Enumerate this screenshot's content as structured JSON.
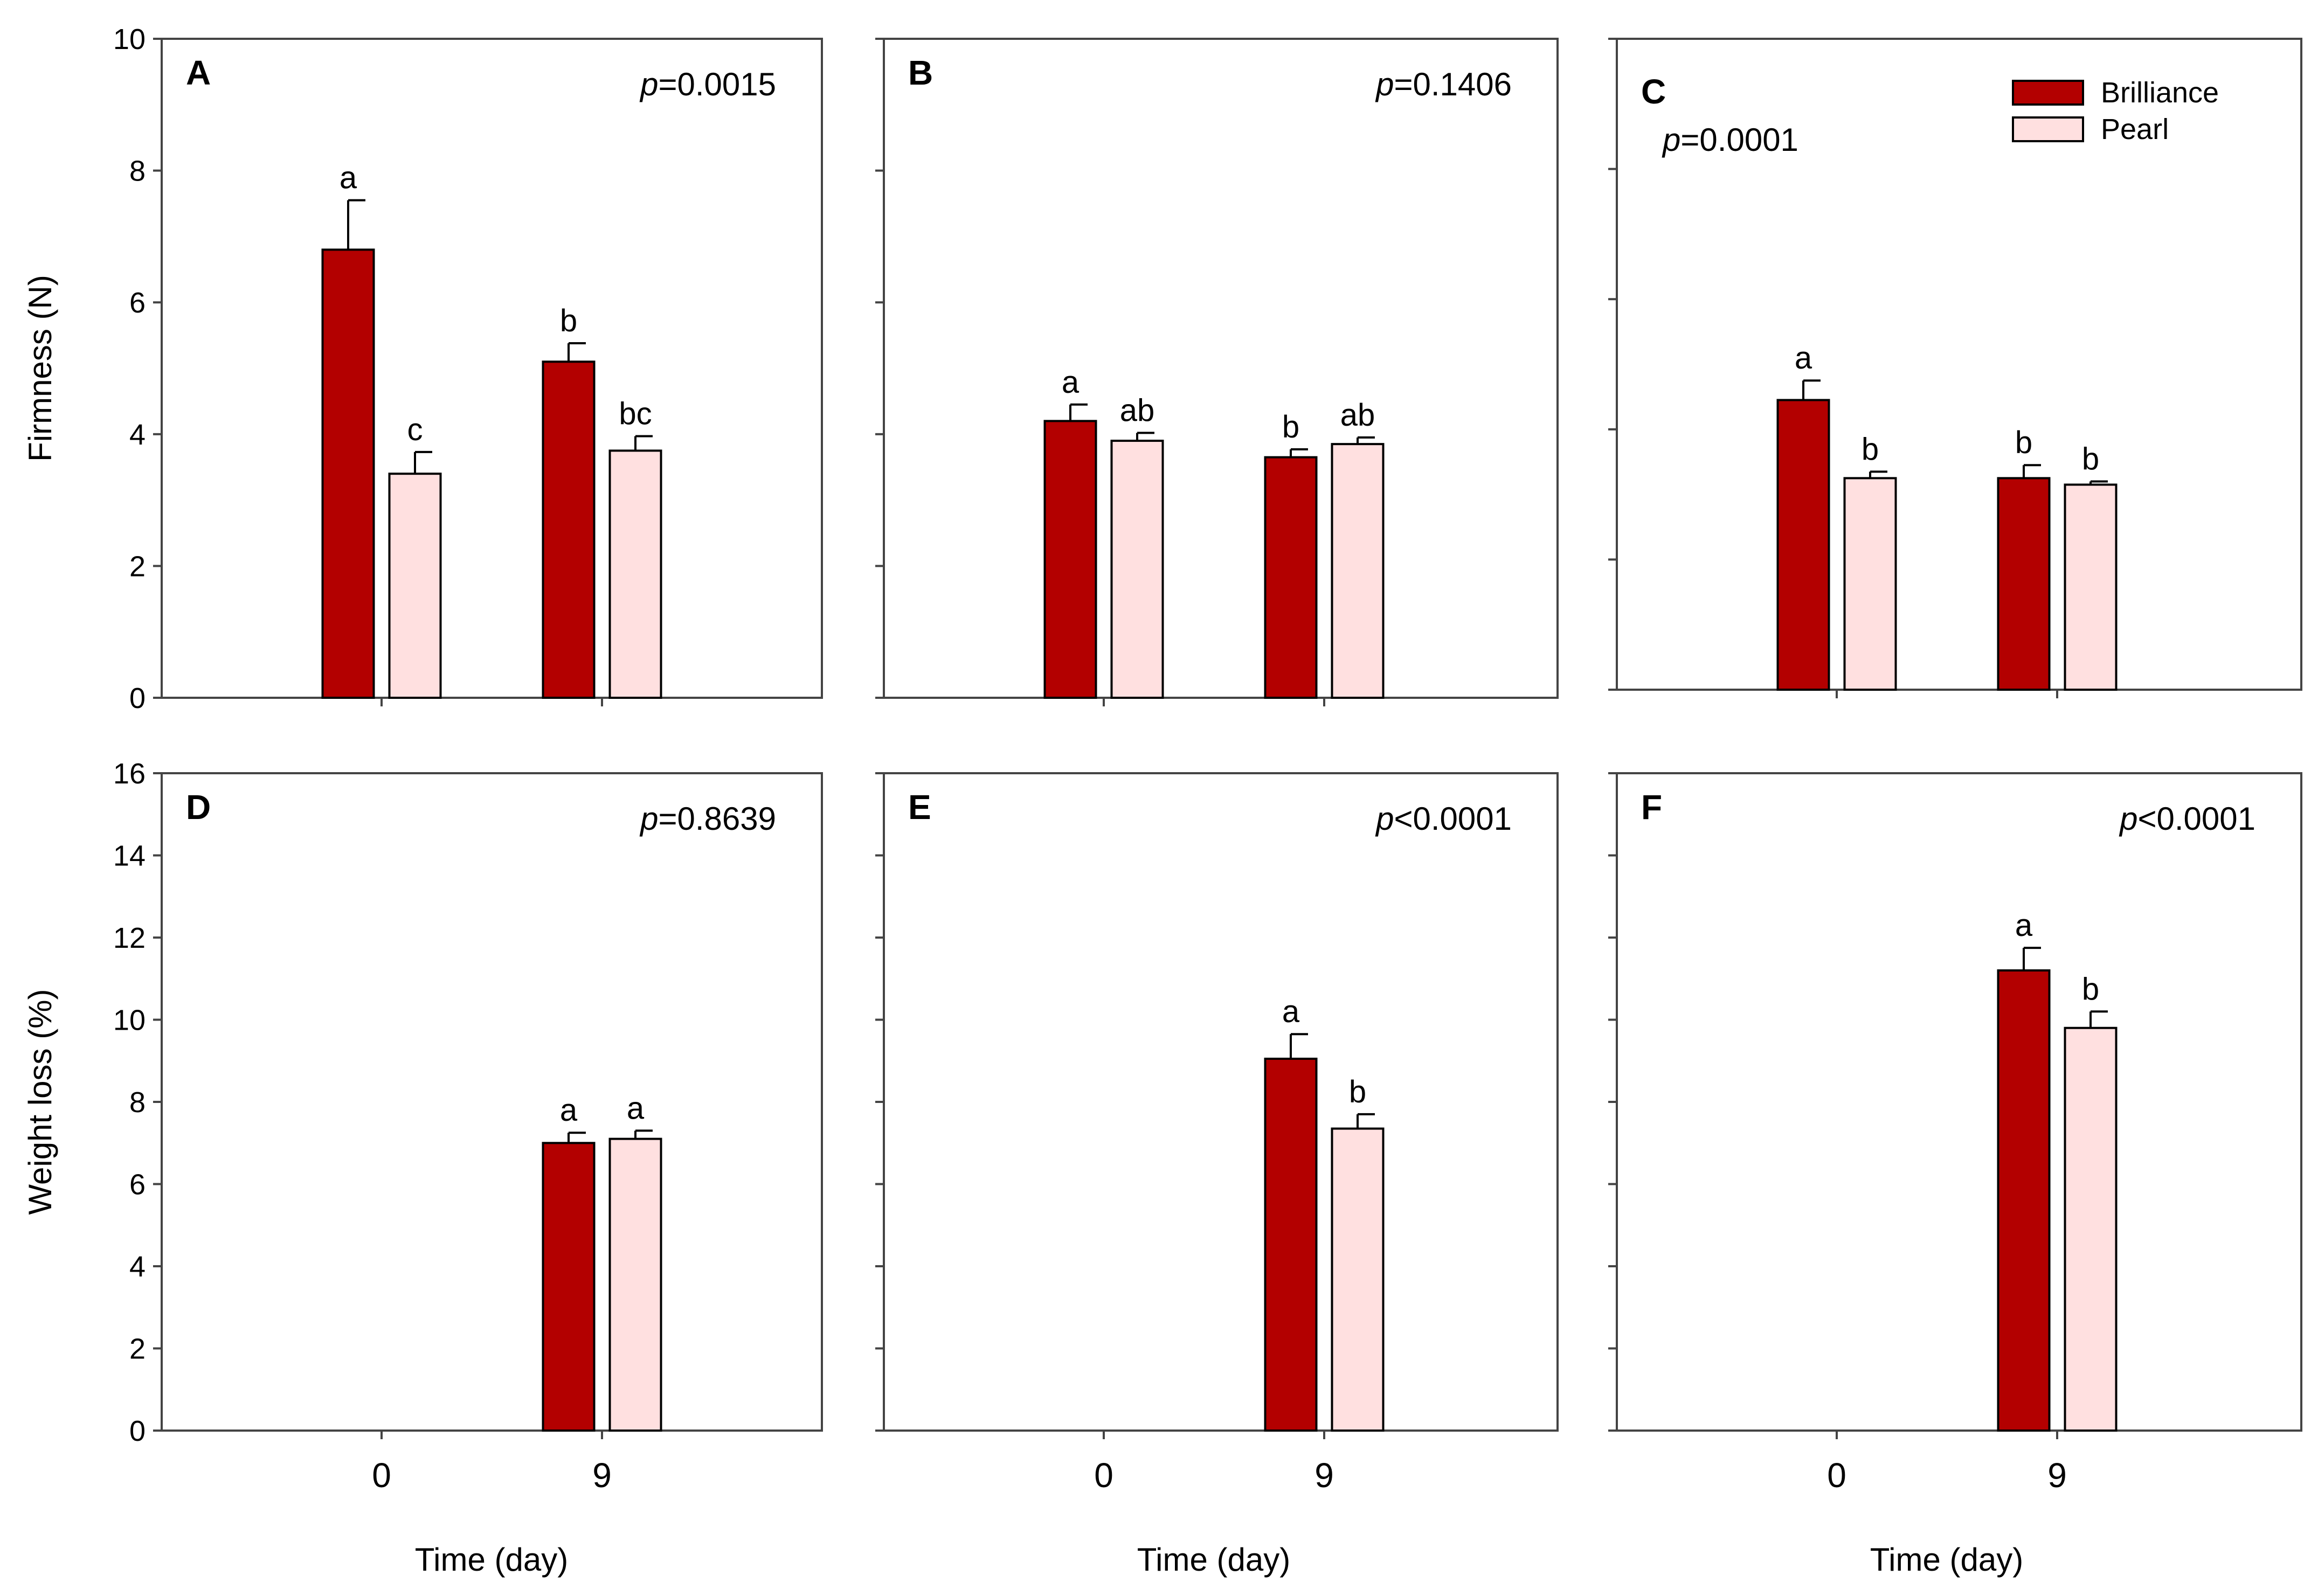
{
  "colors": {
    "brilliance": "#b30000",
    "pearl": "#ffe0e0",
    "axis": "#444444"
  },
  "legend": {
    "items": [
      {
        "label": "Brilliance",
        "color": "#b30000"
      },
      {
        "label": "Pearl",
        "color": "#ffe0e0"
      }
    ]
  },
  "axis_titles": {
    "firmness": "Firmness (N)",
    "weight_loss": "Weight loss (%)",
    "time": "Time (day)"
  },
  "chart_data": [
    {
      "type": "bar",
      "panel": "A",
      "p_prefix": "p",
      "p_value": "=0.0015",
      "xlabel": "",
      "ylabel": "Firmness (N)",
      "ylim": [
        0,
        10
      ],
      "yticks": [
        0,
        2,
        4,
        6,
        8,
        10
      ],
      "categories": [
        "0",
        "9"
      ],
      "series": [
        {
          "name": "Brilliance",
          "values": [
            6.8,
            5.1
          ],
          "errors": [
            0.75,
            0.28
          ],
          "letters": [
            "a",
            "b"
          ]
        },
        {
          "name": "Pearl",
          "values": [
            3.4,
            3.75
          ],
          "errors": [
            0.33,
            0.22
          ],
          "letters": [
            "c",
            "bc"
          ]
        }
      ]
    },
    {
      "type": "bar",
      "panel": "B",
      "p_prefix": "p",
      "p_value": "=0.1406",
      "xlabel": "",
      "ylabel": "",
      "ylim": [
        0,
        10
      ],
      "categories": [
        "0",
        "9"
      ],
      "series": [
        {
          "name": "Brilliance",
          "values": [
            4.2,
            3.65
          ],
          "errors": [
            0.25,
            0.12
          ],
          "letters": [
            "a",
            "b"
          ]
        },
        {
          "name": "Pearl",
          "values": [
            3.9,
            3.85
          ],
          "errors": [
            0.12,
            0.1
          ],
          "letters": [
            "ab",
            "ab"
          ]
        }
      ]
    },
    {
      "type": "bar",
      "panel": "C",
      "p_prefix": "p",
      "p_value": "=0.0001",
      "xlabel": "",
      "ylabel": "",
      "ylim": [
        0,
        10
      ],
      "categories": [
        "0",
        "9"
      ],
      "series": [
        {
          "name": "Brilliance",
          "values": [
            4.45,
            3.25
          ],
          "errors": [
            0.3,
            0.2
          ],
          "letters": [
            "a",
            "b"
          ]
        },
        {
          "name": "Pearl",
          "values": [
            3.25,
            3.15
          ],
          "errors": [
            0.1,
            0.05
          ],
          "letters": [
            "b",
            "b"
          ]
        }
      ]
    },
    {
      "type": "bar",
      "panel": "D",
      "p_prefix": "p",
      "p_value": "=0.8639",
      "xlabel": "Time (day)",
      "ylabel": "Weight loss (%)",
      "ylim": [
        0,
        16
      ],
      "yticks": [
        0,
        2,
        4,
        6,
        8,
        10,
        12,
        14,
        16
      ],
      "categories": [
        "0",
        "9"
      ],
      "series": [
        {
          "name": "Brilliance",
          "values": [
            null,
            7.0
          ],
          "errors": [
            null,
            0.25
          ],
          "letters": [
            null,
            "a"
          ]
        },
        {
          "name": "Pearl",
          "values": [
            null,
            7.1
          ],
          "errors": [
            null,
            0.2
          ],
          "letters": [
            null,
            "a"
          ]
        }
      ]
    },
    {
      "type": "bar",
      "panel": "E",
      "p_prefix": "p",
      "p_value": "<0.0001",
      "xlabel": "Time (day)",
      "ylabel": "",
      "ylim": [
        0,
        16
      ],
      "categories": [
        "0",
        "9"
      ],
      "series": [
        {
          "name": "Brilliance",
          "values": [
            null,
            9.05
          ],
          "errors": [
            null,
            0.6
          ],
          "letters": [
            null,
            "a"
          ]
        },
        {
          "name": "Pearl",
          "values": [
            null,
            7.35
          ],
          "errors": [
            null,
            0.35
          ],
          "letters": [
            null,
            "b"
          ]
        }
      ]
    },
    {
      "type": "bar",
      "panel": "F",
      "p_prefix": "p",
      "p_value": "<0.0001",
      "xlabel": "Time (day)",
      "ylabel": "",
      "ylim": [
        0,
        16
      ],
      "categories": [
        "0",
        "9"
      ],
      "series": [
        {
          "name": "Brilliance",
          "values": [
            null,
            11.2
          ],
          "errors": [
            null,
            0.55
          ],
          "letters": [
            null,
            "a"
          ]
        },
        {
          "name": "Pearl",
          "values": [
            null,
            9.8
          ],
          "errors": [
            null,
            0.4
          ],
          "letters": [
            null,
            "b"
          ]
        }
      ]
    }
  ]
}
